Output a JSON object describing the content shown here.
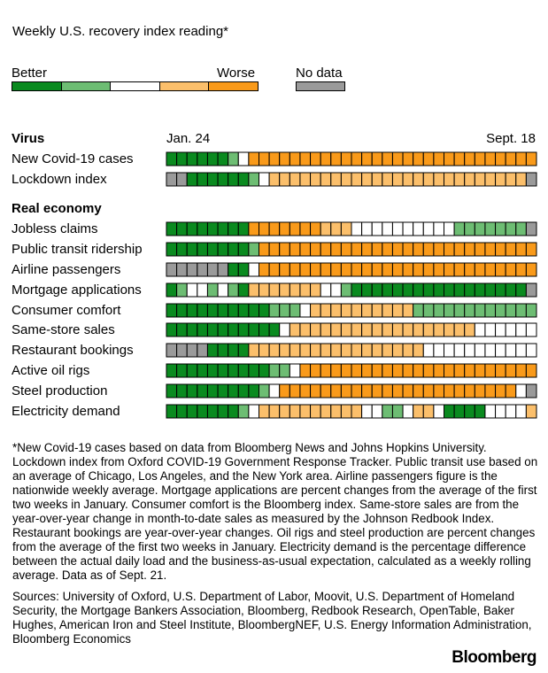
{
  "header": {
    "title": "Weekly U.S. recovery index reading*"
  },
  "legend": {
    "better_label": "Better",
    "worse_label": "Worse",
    "nodata_label": "No data",
    "scale": [
      "dark-green",
      "light-green",
      "white",
      "light-orange",
      "orange"
    ]
  },
  "colors": {
    "dark-green": "#0a8a1f",
    "light-green": "#6dbd73",
    "white": "#ffffff",
    "light-orange": "#fbbf6b",
    "orange": "#f99a1a",
    "no-data": "#9a9a9a"
  },
  "chart_data": {
    "type": "heatmap",
    "x_start_label": "Jan. 24",
    "x_end_label": "Sept. 18",
    "codes": {
      "G": "dark-green",
      "L": "light-green",
      "W": "white",
      "Y": "light-orange",
      "O": "orange",
      "N": "no-data"
    },
    "sections": [
      {
        "title": "Virus",
        "rows": [
          {
            "label": "New Covid-19 cases",
            "cells": "GGGGGGLWOOOOOOOOOOOOOOOOOOOOOOOOOOOO"
          },
          {
            "label": "Lockdown index",
            "cells": "NNGGGGGGLWYYYYYYYYYYYYYYYYYYYYYYYYYN"
          }
        ]
      },
      {
        "title": "Real economy",
        "rows": [
          {
            "label": "Jobless claims",
            "cells": "GGGGGGGGOOOOOOOYYYWWWWWWWWWWLLLLLLLN"
          },
          {
            "label": "Public transit ridership",
            "cells": "GGGGGGGGLOOOOOOOOOOOOOOOOOOOOOOOOOOO"
          },
          {
            "label": "Airline passengers",
            "cells": "NNNNNNGGWOOOOOOOOOOOOOOOOOOOOOOOOOOO"
          },
          {
            "label": "Mortgage applications",
            "cells": "GLWWLWLGYYYYYYYWWLGGGGGGGGGGGGGGGGGN"
          },
          {
            "label": "Consumer comfort",
            "cells": "GGGGGGGGGGLLLWYYYYYYYYYYLLLLLLLLLLLL"
          },
          {
            "label": "Same-store sales",
            "cells": "GGGGGGGGGGGWYYYYYYYYYYYYYYYYYYWWWWWW"
          },
          {
            "label": "Restaurant bookings",
            "cells": "NNNNGGGGYYYYYYYYYYYYYYYYYWWWWWWWWWWW"
          },
          {
            "label": "Active oil rigs",
            "cells": "GGGGGGGGGGLLWOOOOOOOOOOOOOOOOOOOOOOO"
          },
          {
            "label": "Steel production",
            "cells": "GGGGGGGGGLWOOOOOOOOOOOOOOOOOOOOOOOWN"
          },
          {
            "label": "Electricity demand",
            "cells": "GGGGGGGLWYYYYYYYYYYWWLLWYYWGGGGWWWWY"
          }
        ]
      }
    ]
  },
  "footnote": "*New Covid-19 cases based on data from Bloomberg News and Johns Hopkins University. Lockdown index from Oxford COVID-19 Government Response Tracker. Public transit use based on an average of Chicago, Los Angeles, and the New York area. Airline passengers figure is the nationwide weekly average. Mortgage applications are percent changes from the average of the first two weeks in January. Consumer comfort is the Bloomberg index. Same-store sales are from the year-over-year change in month-to-date sales as measured by the Johnson Redbook Index. Restaurant bookings are year-over-year changes. Oil rigs and steel production are percent changes from the average of the first two weeks in January. Electricity demand is the percentage difference between the actual daily load and the business-as-usual expectation, calculated as a weekly rolling average. Data as of Sept. 21.",
  "sources": "Sources: University of Oxford, U.S. Department of Labor, Moovit, U.S. Department of Homeland Security, the Mortgage Bankers Association, Bloomberg, Redbook Research, OpenTable, Baker Hughes, American Iron and Steel Institute, BloombergNEF, U.S. Energy Information Administration, Bloomberg Economics",
  "brand": "Bloomberg"
}
